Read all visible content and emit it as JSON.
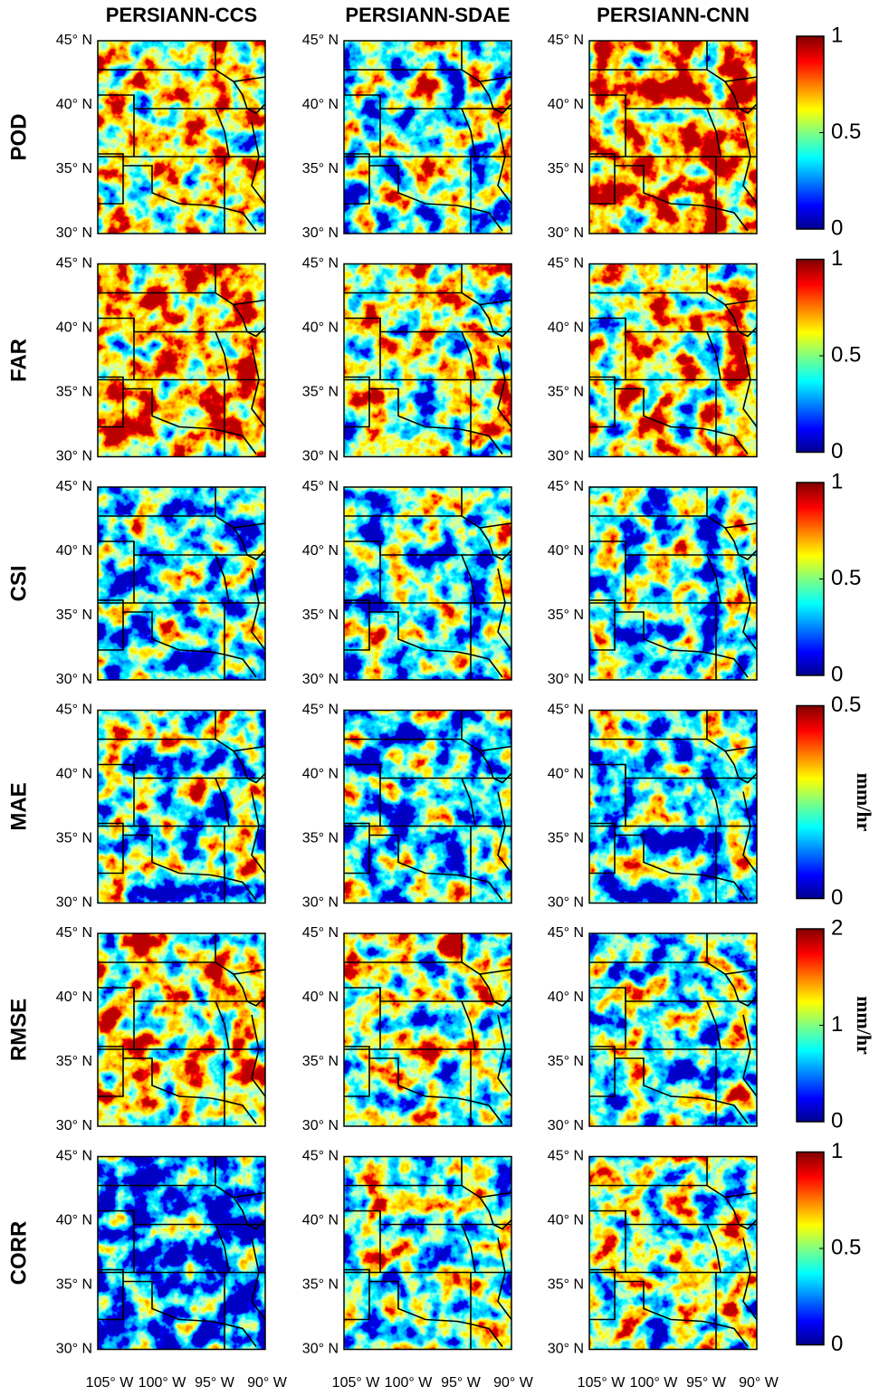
{
  "columns": [
    "PERSIANN-CCS",
    "PERSIANN-SDAE",
    "PERSIANN-CNN"
  ],
  "lat_labels": [
    "45° N",
    "40° N",
    "35° N",
    "30° N"
  ],
  "lon_labels": [
    "105° W",
    "100° W",
    "95° W",
    "90° W"
  ],
  "rows": [
    {
      "label": "POD",
      "colorbar": {
        "lim": [
          0,
          1
        ],
        "ticks": [
          0,
          0.5,
          1
        ]
      }
    },
    {
      "label": "FAR",
      "colorbar": {
        "lim": [
          0,
          1
        ],
        "ticks": [
          0,
          0.5,
          1
        ]
      }
    },
    {
      "label": "CSI",
      "colorbar": {
        "lim": [
          0,
          1
        ],
        "ticks": [
          0,
          0.5,
          1
        ]
      }
    },
    {
      "label": "MAE",
      "colorbar": {
        "lim": [
          0,
          0.5
        ],
        "ticks": [
          0,
          0.5
        ],
        "unit": "mm/hr"
      }
    },
    {
      "label": "RMSE",
      "colorbar": {
        "lim": [
          0,
          2
        ],
        "ticks": [
          0,
          1,
          2
        ],
        "unit": "mm/hr"
      }
    },
    {
      "label": "CORR",
      "colorbar": {
        "lim": [
          0,
          1
        ],
        "ticks": [
          0,
          0.5,
          1
        ]
      }
    }
  ]
}
